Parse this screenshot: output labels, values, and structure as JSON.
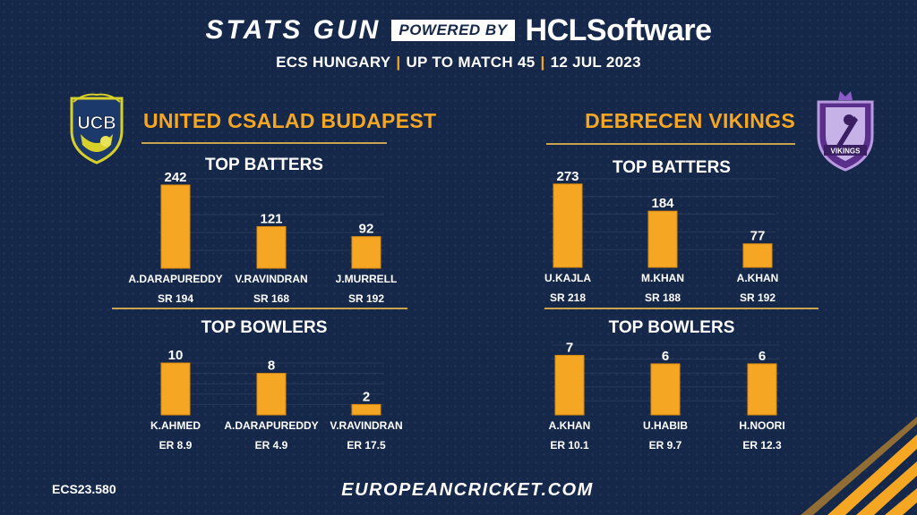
{
  "header": {
    "brand_stats": "STATS GUN",
    "brand_powered": "POWERED BY",
    "brand_hcl": "HCLSoftware",
    "subtitle_parts": [
      "ECS HUNGARY",
      "UP TO MATCH 45",
      "12 JUL 2023"
    ]
  },
  "teams": {
    "left": {
      "name": "UNITED CSALAD BUDAPEST",
      "logo_text": "UCB"
    },
    "right": {
      "name": "DEBRECEN VIKINGS",
      "logo_text": "VIKINGS"
    }
  },
  "sections": {
    "batters": "TOP BATTERS",
    "bowlers": "TOP BOWLERS"
  },
  "colors": {
    "background": "#16284a",
    "accent": "#f5a623",
    "rule": "#c9a34e"
  },
  "chart_data": [
    {
      "type": "bar",
      "title": "TOP BATTERS",
      "team": "UNITED CSALAD BUDAPEST",
      "categories": [
        "A.DARAPUREDDY",
        "V.RAVINDRAN",
        "J.MURRELL"
      ],
      "values": [
        242,
        121,
        92
      ],
      "sublabels": [
        "SR 194",
        "SR 168",
        "SR 192"
      ],
      "ylim": [
        0,
        260
      ]
    },
    {
      "type": "bar",
      "title": "TOP BATTERS",
      "team": "DEBRECEN VIKINGS",
      "categories": [
        "U.KAJLA",
        "M.KHAN",
        "A.KHAN"
      ],
      "values": [
        273,
        184,
        77
      ],
      "sublabels": [
        "SR 218",
        "SR 188",
        "SR 192"
      ],
      "ylim": [
        0,
        290
      ]
    },
    {
      "type": "bar",
      "title": "TOP BOWLERS",
      "team": "UNITED CSALAD BUDAPEST",
      "categories": [
        "K.AHMED",
        "A.DARAPUREDDY",
        "V.RAVINDRAN"
      ],
      "values": [
        10,
        8,
        2
      ],
      "sublabels": [
        "ER 8.9",
        "ER 4.9",
        "ER 17.5"
      ],
      "ylim": [
        0,
        10
      ]
    },
    {
      "type": "bar",
      "title": "TOP BOWLERS",
      "team": "DEBRECEN VIKINGS",
      "categories": [
        "A.KHAN",
        "U.HABIB",
        "H.NOORI"
      ],
      "values": [
        7,
        6,
        6
      ],
      "sublabels": [
        "ER 10.1",
        "ER 9.7",
        "ER 12.3"
      ],
      "ylim": [
        0,
        8.2
      ]
    }
  ],
  "footer": {
    "code": "ECS23.580",
    "site": "EUROPEANCRICKET.COM"
  }
}
